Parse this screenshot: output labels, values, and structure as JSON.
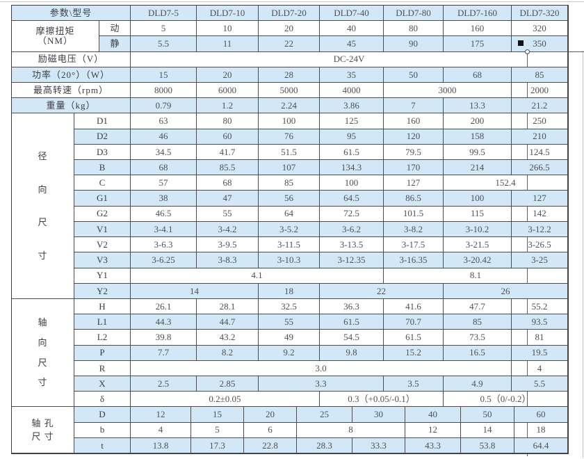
{
  "colors": {
    "row_fill_blue": "#d2e8f7",
    "grid_line": "#4a4a50",
    "number_text": "#4e5058",
    "label_text": "#3a3c44",
    "marker_black": "#17110b"
  },
  "group_labels": {
    "torque_line1": "摩擦扭矩",
    "torque_line2": "（NM）",
    "radial": "径向尺寸",
    "axial": "轴向尺寸",
    "bore_line1": "轴 孔",
    "bore_line2": "尺 寸"
  },
  "rows": [
    {
      "key": "header",
      "label": "参数\\型号",
      "cells": [
        {
          "t": "DLD7-5"
        },
        {
          "t": "DLD7-10"
        },
        {
          "t": "DLD7-20"
        },
        {
          "t": "DLD7-40"
        },
        {
          "t": "DLD7-80"
        },
        {
          "t": "DLD7-160"
        },
        {
          "t": "DLD7-320"
        }
      ]
    },
    {
      "key": "torque-dynamic",
      "sub": "动",
      "cells": [
        {
          "t": "5"
        },
        {
          "t": "10"
        },
        {
          "t": "20"
        },
        {
          "t": "40"
        },
        {
          "t": "80"
        },
        {
          "t": "160"
        },
        {
          "t": "320"
        }
      ]
    },
    {
      "key": "torque-static",
      "sub": "静",
      "cells": [
        {
          "t": "5.5"
        },
        {
          "t": "11"
        },
        {
          "t": "22"
        },
        {
          "t": "45"
        },
        {
          "t": "90"
        },
        {
          "t": "175"
        },
        {
          "t": "350"
        }
      ]
    },
    {
      "key": "voltage",
      "label": "励磁电压（V）",
      "cells": [
        {
          "t": "DC-24V",
          "s": 7
        }
      ]
    },
    {
      "key": "power",
      "label": "功率（20°）（W）",
      "cells": [
        {
          "t": "15"
        },
        {
          "t": "20"
        },
        {
          "t": "28"
        },
        {
          "t": "35"
        },
        {
          "t": "50"
        },
        {
          "t": "68"
        },
        {
          "t": "85"
        }
      ]
    },
    {
      "key": "speed",
      "label": "最高转速（rpm）",
      "cells": [
        {
          "t": "8000"
        },
        {
          "t": "6000"
        },
        {
          "t": "5000"
        },
        {
          "t": "4000"
        },
        {
          "t": "3000",
          "s": 2
        },
        {
          "t": "2000"
        }
      ]
    },
    {
      "key": "weight",
      "label": "重量（kg）",
      "cells": [
        {
          "t": "0.79"
        },
        {
          "t": "1.2"
        },
        {
          "t": "2.24"
        },
        {
          "t": "3.86"
        },
        {
          "t": "7"
        },
        {
          "t": "13.3"
        },
        {
          "t": "21.2"
        }
      ]
    },
    {
      "key": "D1",
      "sub": "D1",
      "cells": [
        {
          "t": "63"
        },
        {
          "t": "80"
        },
        {
          "t": "100"
        },
        {
          "t": "125"
        },
        {
          "t": "160"
        },
        {
          "t": "200"
        },
        {
          "t": "250"
        }
      ]
    },
    {
      "key": "D2",
      "sub": "D2",
      "cells": [
        {
          "t": "46"
        },
        {
          "t": "60"
        },
        {
          "t": "76"
        },
        {
          "t": "95"
        },
        {
          "t": "120"
        },
        {
          "t": "158"
        },
        {
          "t": "210"
        }
      ]
    },
    {
      "key": "D3",
      "sub": "D3",
      "cells": [
        {
          "t": "34.5"
        },
        {
          "t": "41.7"
        },
        {
          "t": "51.5"
        },
        {
          "t": "61.5"
        },
        {
          "t": "79.5"
        },
        {
          "t": "99.5"
        },
        {
          "t": "124.5"
        }
      ]
    },
    {
      "key": "B",
      "sub": "B",
      "cells": [
        {
          "t": "68"
        },
        {
          "t": "85.5"
        },
        {
          "t": "107"
        },
        {
          "t": "134.3"
        },
        {
          "t": "170"
        },
        {
          "t": "214"
        },
        {
          "t": "266.5"
        }
      ]
    },
    {
      "key": "C",
      "sub": "C",
      "cells": [
        {
          "t": "57"
        },
        {
          "t": "68"
        },
        {
          "t": "85"
        },
        {
          "t": "100"
        },
        {
          "t": "127"
        },
        {
          "t": "152.4",
          "s": 2
        }
      ]
    },
    {
      "key": "G1",
      "sub": "G1",
      "cells": [
        {
          "t": "38"
        },
        {
          "t": "47"
        },
        {
          "t": "56"
        },
        {
          "t": "64.5"
        },
        {
          "t": "86.5"
        },
        {
          "t": "100"
        },
        {
          "t": "127"
        }
      ]
    },
    {
      "key": "G2",
      "sub": "G2",
      "cells": [
        {
          "t": "46.5"
        },
        {
          "t": "55"
        },
        {
          "t": "64"
        },
        {
          "t": "72.5"
        },
        {
          "t": "101.5"
        },
        {
          "t": "115"
        },
        {
          "t": "142"
        }
      ]
    },
    {
      "key": "V1",
      "sub": "V1",
      "cells": [
        {
          "t": "3-4.1"
        },
        {
          "t": "3-4.2"
        },
        {
          "t": "3-5.2"
        },
        {
          "t": "3-6.2"
        },
        {
          "t": "3-8.2"
        },
        {
          "t": "3-10.2"
        },
        {
          "t": "3-12.2"
        }
      ]
    },
    {
      "key": "V2",
      "sub": "V2",
      "cells": [
        {
          "t": "3-6.3"
        },
        {
          "t": "3-9.5"
        },
        {
          "t": "3-11.5"
        },
        {
          "t": "3-13.5"
        },
        {
          "t": "3-17.5"
        },
        {
          "t": "3-21.5"
        },
        {
          "t": "3-26.5"
        }
      ]
    },
    {
      "key": "V3",
      "sub": "V3",
      "cells": [
        {
          "t": "3-6.25"
        },
        {
          "t": "3-8.3"
        },
        {
          "t": "3-10.3"
        },
        {
          "t": "3-12.35"
        },
        {
          "t": "3-16.35"
        },
        {
          "t": "3-20.42"
        },
        {
          "t": "3-25"
        }
      ]
    },
    {
      "key": "Y1",
      "sub": "Y1",
      "cells": [
        {
          "t": "4.1",
          "s": 4
        },
        {
          "t": "8.1",
          "s": 3
        }
      ]
    },
    {
      "key": "Y2",
      "sub": "Y2",
      "cells": [
        {
          "t": "14",
          "s": 2
        },
        {
          "t": "18"
        },
        {
          "t": "22",
          "s": 2
        },
        {
          "t": "26",
          "s": 2
        }
      ]
    },
    {
      "key": "H",
      "sub": "H",
      "cells": [
        {
          "t": "26.1"
        },
        {
          "t": "28.1"
        },
        {
          "t": "32.5"
        },
        {
          "t": "36.3"
        },
        {
          "t": "41.6"
        },
        {
          "t": "47.7"
        },
        {
          "t": "55.2"
        }
      ]
    },
    {
      "key": "L1",
      "sub": "L1",
      "cells": [
        {
          "t": "44.3"
        },
        {
          "t": "44.7"
        },
        {
          "t": "55"
        },
        {
          "t": "61.5"
        },
        {
          "t": "70.7"
        },
        {
          "t": "85"
        },
        {
          "t": "93.5"
        }
      ]
    },
    {
      "key": "L2",
      "sub": "L2",
      "cells": [
        {
          "t": "39.8"
        },
        {
          "t": "43.2"
        },
        {
          "t": "49"
        },
        {
          "t": "54.5"
        },
        {
          "t": "61.5"
        },
        {
          "t": "73.5"
        },
        {
          "t": "81"
        }
      ]
    },
    {
      "key": "P",
      "sub": "P",
      "cells": [
        {
          "t": "7.7"
        },
        {
          "t": "8.2"
        },
        {
          "t": "9.2"
        },
        {
          "t": "9.8"
        },
        {
          "t": "15.2"
        },
        {
          "t": "16.5"
        },
        {
          "t": "19.5"
        }
      ]
    },
    {
      "key": "R",
      "sub": "R",
      "cells": [
        {
          "t": "3.0",
          "s": 6
        },
        {
          "t": "4"
        }
      ]
    },
    {
      "key": "X",
      "sub": "X",
      "cells": [
        {
          "t": "2.5"
        },
        {
          "t": "2.85"
        },
        {
          "t": "3.3",
          "s": 2
        },
        {
          "t": "3.5"
        },
        {
          "t": "4.9"
        },
        {
          "t": "5.5"
        }
      ]
    },
    {
      "key": "delta",
      "sub": "δ",
      "cells": [
        {
          "t": "0.2±0.05",
          "s": 3
        },
        {
          "t": "0.3（+0.05/-0.1）",
          "s": 2
        },
        {
          "t": "0.5（0/-0.2）",
          "s": 2
        }
      ]
    },
    {
      "key": "bore-D",
      "sub": "D",
      "cells": [
        {
          "t": "12"
        },
        {
          "t": "15"
        },
        {
          "t": "20"
        },
        {
          "t": "25"
        },
        {
          "t": "30"
        },
        {
          "t": "40"
        },
        {
          "t": "50"
        },
        {
          "t": "60"
        }
      ]
    },
    {
      "key": "bore-b",
      "sub": "b",
      "cells": [
        {
          "t": "4"
        },
        {
          "t": "5"
        },
        {
          "t": "6"
        },
        {
          "t": "8",
          "s": 2
        },
        {
          "t": "12"
        },
        {
          "t": "14"
        },
        {
          "t": "18"
        }
      ]
    },
    {
      "key": "bore-t",
      "sub": "t",
      "cells": [
        {
          "t": "13.8"
        },
        {
          "t": "17.3"
        },
        {
          "t": "22.8"
        },
        {
          "t": "28.3"
        },
        {
          "t": "33.3"
        },
        {
          "t": "43.3"
        },
        {
          "t": "53.8"
        },
        {
          "t": "64.4"
        }
      ]
    }
  ]
}
